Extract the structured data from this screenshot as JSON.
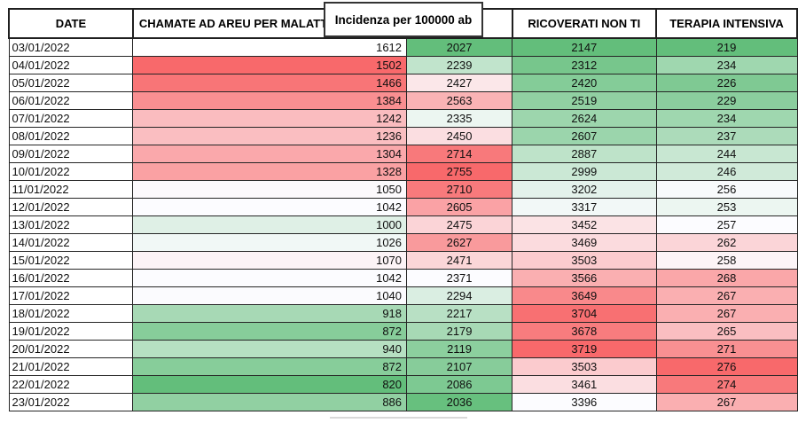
{
  "chart_data": {
    "type": "table",
    "columns": [
      "DATE",
      "CHAMATE AD AREU PER MALATTIE INFETTIVE",
      "Incidenza per 100000 ab",
      "RICOVERATI NON TI",
      "TERAPIA INTENSIVA"
    ],
    "rows": [
      [
        "03/01/2022",
        1612,
        2027,
        2147,
        219
      ],
      [
        "04/01/2022",
        1502,
        2239,
        2312,
        234
      ],
      [
        "05/01/2022",
        1466,
        2427,
        2420,
        226
      ],
      [
        "06/01/2022",
        1384,
        2563,
        2519,
        229
      ],
      [
        "07/01/2022",
        1242,
        2335,
        2624,
        234
      ],
      [
        "08/01/2022",
        1236,
        2450,
        2607,
        237
      ],
      [
        "09/01/2022",
        1304,
        2714,
        2887,
        244
      ],
      [
        "10/01/2022",
        1328,
        2755,
        2999,
        246
      ],
      [
        "11/01/2022",
        1050,
        2710,
        3202,
        256
      ],
      [
        "12/01/2022",
        1042,
        2605,
        3317,
        253
      ],
      [
        "13/01/2022",
        1000,
        2475,
        3452,
        257
      ],
      [
        "14/01/2022",
        1026,
        2627,
        3469,
        262
      ],
      [
        "15/01/2022",
        1070,
        2471,
        3503,
        258
      ],
      [
        "16/01/2022",
        1042,
        2371,
        3566,
        268
      ],
      [
        "17/01/2022",
        1040,
        2294,
        3649,
        267
      ],
      [
        "18/01/2022",
        918,
        2217,
        3704,
        267
      ],
      [
        "19/01/2022",
        872,
        2179,
        3678,
        265
      ],
      [
        "20/01/2022",
        940,
        2119,
        3719,
        271
      ],
      [
        "21/01/2022",
        872,
        2107,
        3503,
        276
      ],
      [
        "22/01/2022",
        820,
        2086,
        3461,
        274
      ],
      [
        "23/01/2022",
        886,
        2036,
        3396,
        267
      ]
    ],
    "legend_note": "red-white-green 3-color scale applied per column"
  },
  "styles": {
    "scale": {
      "green": "#63BE7B",
      "white": "#FCFCFF",
      "red": "#F8696B"
    },
    "grid_border": "#262626",
    "cell_colors": [
      [
        "#FFFFFF",
        "#FFFFFF",
        "#63BE7B",
        "#63BE7B",
        "#63BE7B"
      ],
      [
        "#FFFFFF",
        "#F8696B",
        "#C1E4CC",
        "#77C68C",
        "#9FD7AF"
      ],
      [
        "#FFFFFF",
        "#F87577",
        "#FBE7E9",
        "#84CC98",
        "#7FC993"
      ],
      [
        "#FFFFFF",
        "#F98F91",
        "#FAB3B5",
        "#91D0A2",
        "#8BCE9E"
      ],
      [
        "#FFFFFF",
        "#FABCBF",
        "#ECF6F1",
        "#9DD6AD",
        "#9FD7AF"
      ],
      [
        "#FFFFFF",
        "#FABEC1",
        "#FBDEE1",
        "#9BD5AC",
        "#ACDBBA"
      ],
      [
        "#FFFFFF",
        "#FAA8AB",
        "#F8797B",
        "#BEE3C9",
        "#C8E7D2"
      ],
      [
        "#FFFFFF",
        "#FAA1A3",
        "#F8696B",
        "#CBE8D5",
        "#D0EAD9"
      ],
      [
        "#FFFFFF",
        "#FCF9FC",
        "#F87A7C",
        "#E4F2EB",
        "#F8FAFC"
      ],
      [
        "#FFFFFF",
        "#FCFCFF",
        "#FAA2A5",
        "#F2F8F7",
        "#ECF6F1"
      ],
      [
        "#FFFFFF",
        "#DFF0E6",
        "#FBD4D7",
        "#FBE3E5",
        "#FCFCFF"
      ],
      [
        "#FFFFFF",
        "#F1F8F6",
        "#F99A9C",
        "#FBDBDE",
        "#FBD5D8"
      ],
      [
        "#FFFFFF",
        "#FCF3F6",
        "#FBD6D8",
        "#FBCBCE",
        "#FCF4F7"
      ],
      [
        "#FFFFFF",
        "#FCFCFF",
        "#FCFCFF",
        "#FAAFB1",
        "#FAA7A9"
      ],
      [
        "#FFFFFF",
        "#FBFBFE",
        "#DAEEE2",
        "#F9898B",
        "#FAAFB1"
      ],
      [
        "#FFFFFF",
        "#A7D9B5",
        "#B8E0C4",
        "#F87072",
        "#FAAFB1"
      ],
      [
        "#FFFFFF",
        "#87CD9A",
        "#A7D9B5",
        "#F87C7E",
        "#FABEC1"
      ],
      [
        "#FFFFFF",
        "#B6E0C2",
        "#8CCF9E",
        "#F8696B",
        "#F99092"
      ],
      [
        "#FFFFFF",
        "#87CD9A",
        "#87CC9A",
        "#FBCBCE",
        "#F8696B"
      ],
      [
        "#FFFFFF",
        "#63BE7B",
        "#7DC992",
        "#FBDEE1",
        "#F8797B"
      ],
      [
        "#FFFFFF",
        "#91D0A2",
        "#67C07E",
        "#FCFCFF",
        "#FAAFB1"
      ]
    ]
  }
}
